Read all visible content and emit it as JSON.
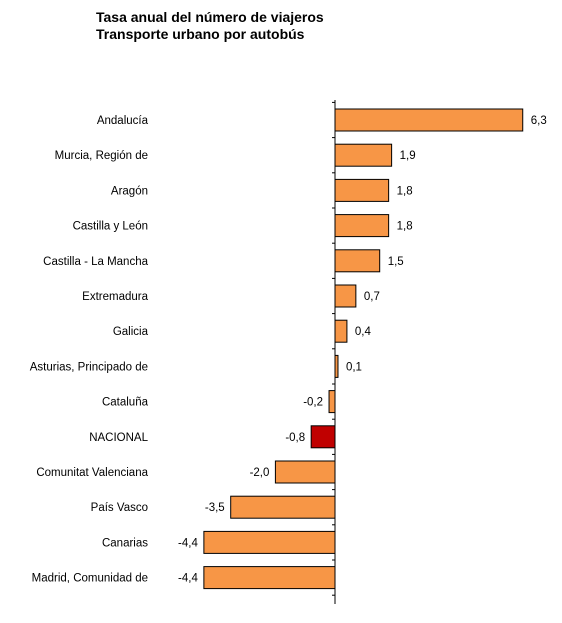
{
  "chart_data": {
    "type": "bar",
    "orientation": "horizontal",
    "title": "Tasa anual del número de viajeros",
    "subtitle": "Transporte urbano por autobús",
    "categories": [
      "Andalucía",
      "Murcia, Región de",
      "Aragón",
      "Castilla y León",
      "Castilla - La Mancha",
      "Extremadura",
      "Galicia",
      "Asturias, Principado de",
      "Cataluña",
      "NACIONAL",
      "Comunitat Valenciana",
      "País Vasco",
      "Canarias",
      "Madrid, Comunidad de"
    ],
    "values": [
      6.3,
      1.9,
      1.8,
      1.8,
      1.5,
      0.7,
      0.4,
      0.1,
      -0.2,
      -0.8,
      -2.0,
      -3.5,
      -4.4,
      -4.4
    ],
    "value_labels": [
      "6,3",
      "1,9",
      "1,8",
      "1,8",
      "1,5",
      "0,7",
      "0,4",
      "0,1",
      "-0,2",
      "-0,8",
      "-2,0",
      "-3,5",
      "-4,4",
      "-4,4"
    ],
    "highlight_category": "NACIONAL",
    "colors": {
      "bar": "#F79646",
      "highlight": "#C00000",
      "outline": "#000000",
      "axis": "#000000"
    },
    "xlim": [
      -4.4,
      6.3
    ],
    "grid": false,
    "legend": "none"
  }
}
